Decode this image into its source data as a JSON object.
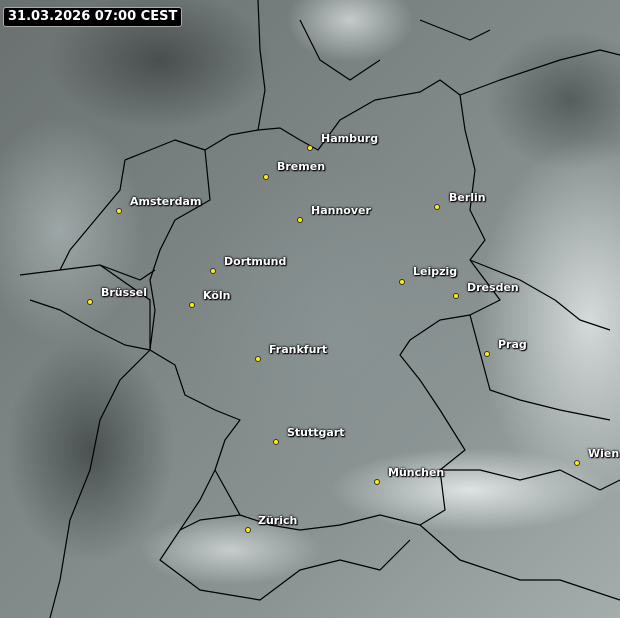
{
  "timestamp": "31.03.2026 07:00 CEST",
  "colors": {
    "city_dot": "#ffef00",
    "border_line": "#000000",
    "label_text": "#ffffff"
  },
  "cities": [
    {
      "name": "Hamburg"
    },
    {
      "name": "Bremen"
    },
    {
      "name": "Amsterdam"
    },
    {
      "name": "Hannover"
    },
    {
      "name": "Berlin"
    },
    {
      "name": "Dortmund"
    },
    {
      "name": "Leipzig"
    },
    {
      "name": "Dresden"
    },
    {
      "name": "Brüssel"
    },
    {
      "name": "Köln"
    },
    {
      "name": "Frankfurt"
    },
    {
      "name": "Prag"
    },
    {
      "name": "Stuttgart"
    },
    {
      "name": "München"
    },
    {
      "name": "Wien"
    },
    {
      "name": "Zürich"
    }
  ]
}
